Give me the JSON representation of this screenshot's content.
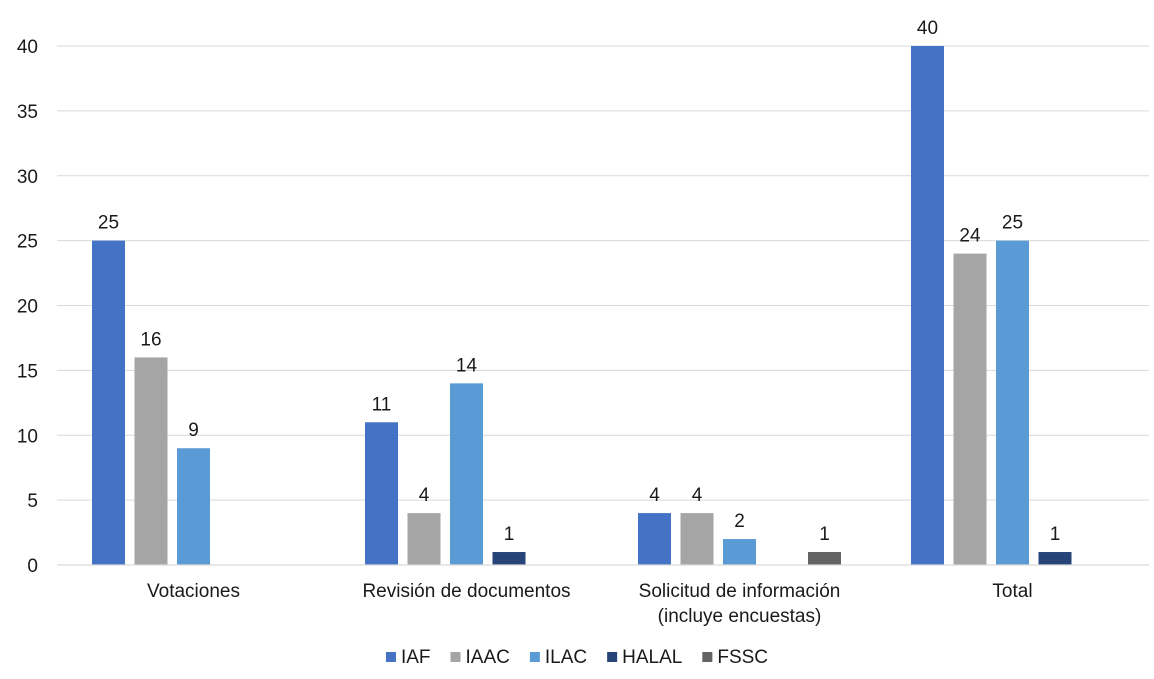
{
  "chart_data": {
    "type": "bar",
    "categories": [
      [
        "Votaciones"
      ],
      [
        "Revisión de documentos"
      ],
      [
        "Solicitud de información",
        "(incluye encuestas)"
      ],
      [
        "Total"
      ]
    ],
    "series": [
      {
        "name": "IAF",
        "color": "#4472C4",
        "values": [
          25,
          11,
          4,
          40
        ]
      },
      {
        "name": "IAAC",
        "color": "#A5A5A5",
        "values": [
          16,
          4,
          4,
          24
        ]
      },
      {
        "name": "ILAC",
        "color": "#5B9BD5",
        "values": [
          9,
          14,
          2,
          25
        ]
      },
      {
        "name": "HALAL",
        "color": "#264478",
        "values": [
          null,
          1,
          null,
          1
        ]
      },
      {
        "name": "FSSC",
        "color": "#636363",
        "values": [
          null,
          null,
          1,
          null
        ]
      }
    ],
    "ylim": [
      0,
      40
    ],
    "yticks": [
      0,
      5,
      10,
      15,
      20,
      25,
      30,
      35,
      40
    ],
    "grid": true,
    "legend": "bottom",
    "gridline_color": "#D9D9D9",
    "text_color": "#1a1a1a"
  }
}
